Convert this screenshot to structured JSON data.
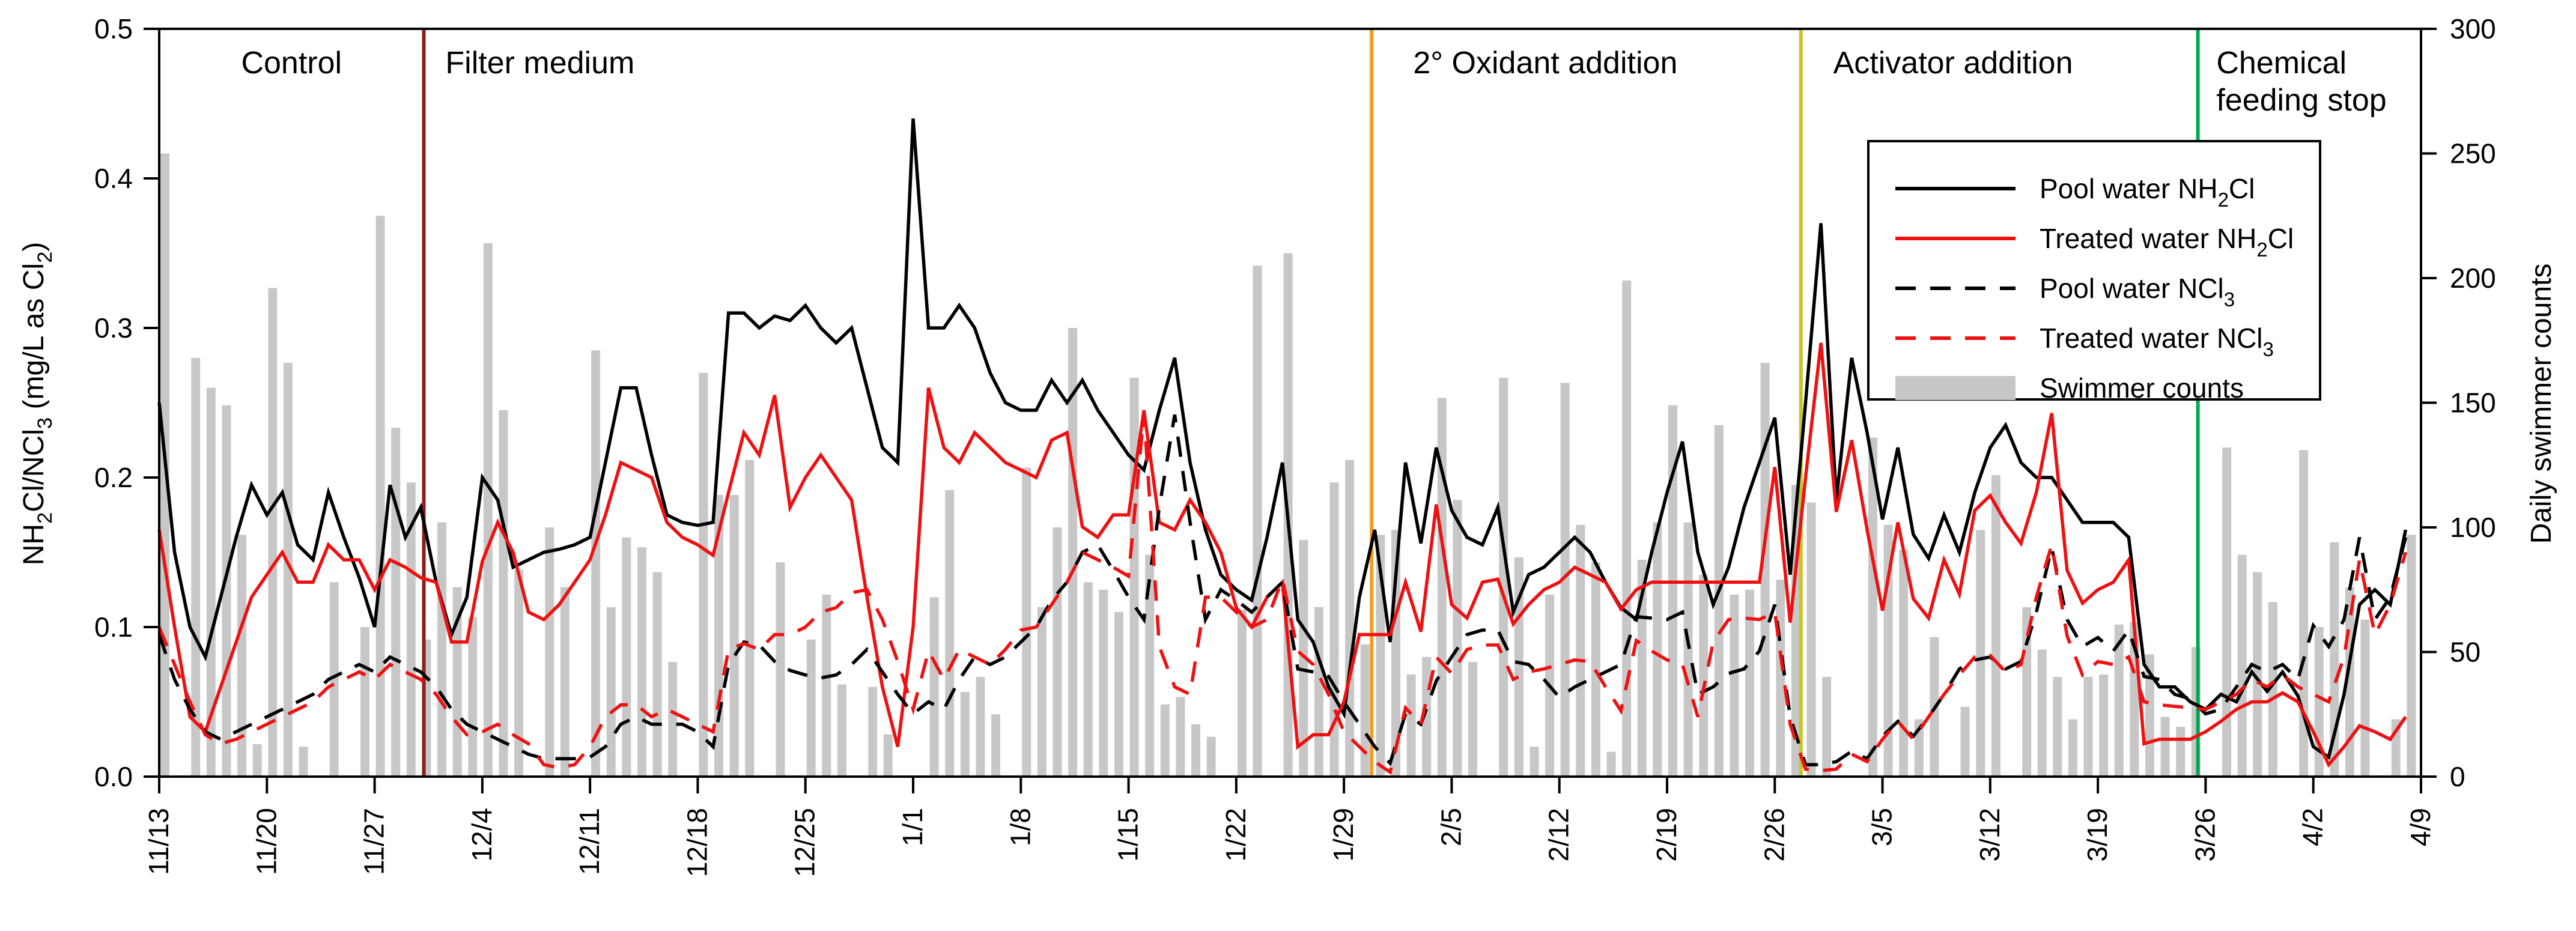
{
  "chart_data": {
    "type": "line+bar",
    "title": "",
    "x_axis": {
      "unit": "date",
      "start": "11/13",
      "end": "4/9",
      "total_days": 147,
      "tick_interval_days": 7,
      "tick_labels": [
        "11/13",
        "11/20",
        "11/27",
        "12/4",
        "12/11",
        "12/18",
        "12/25",
        "1/1",
        "1/8",
        "1/15",
        "1/22",
        "1/29",
        "2/5",
        "2/12",
        "2/19",
        "2/26",
        "3/5",
        "3/12",
        "3/19",
        "3/26",
        "4/2",
        "4/9"
      ]
    },
    "y_left": {
      "title": "NH{2}Cl/NCl{3} (mg/L as Cl{2})",
      "range": [
        0,
        0.5
      ],
      "tick_labels": [
        "0.0",
        "0.1",
        "0.2",
        "0.3",
        "0.4",
        "0.5"
      ]
    },
    "y_right": {
      "title": "Daily swimmer counts",
      "range": [
        0,
        300
      ],
      "tick_labels": [
        "0",
        "50",
        "100",
        "150",
        "200",
        "250",
        "300"
      ]
    },
    "grid": "off",
    "legend_position": "upper-right-inside",
    "days": [
      "11/13",
      "11/14",
      "11/15",
      "11/16",
      "11/17",
      "11/18",
      "11/19",
      "11/20",
      "11/21",
      "11/22",
      "11/23",
      "11/24",
      "11/25",
      "11/26",
      "11/27",
      "11/28",
      "11/29",
      "11/30",
      "12/1",
      "12/2",
      "12/3",
      "12/4",
      "12/5",
      "12/6",
      "12/7",
      "12/8",
      "12/9",
      "12/10",
      "12/11",
      "12/12",
      "12/13",
      "12/14",
      "12/15",
      "12/16",
      "12/17",
      "12/18",
      "12/19",
      "12/20",
      "12/21",
      "12/22",
      "12/23",
      "12/24",
      "12/25",
      "12/26",
      "12/27",
      "12/28",
      "12/29",
      "12/30",
      "12/31",
      "1/1",
      "1/2",
      "1/3",
      "1/4",
      "1/5",
      "1/6",
      "1/7",
      "1/8",
      "1/9",
      "1/10",
      "1/11",
      "1/12",
      "1/13",
      "1/14",
      "1/15",
      "1/16",
      "1/17",
      "1/18",
      "1/19",
      "1/20",
      "1/21",
      "1/22",
      "1/23",
      "1/24",
      "1/25",
      "1/26",
      "1/27",
      "1/28",
      "1/29",
      "1/30",
      "1/31",
      "2/1",
      "2/2",
      "2/3",
      "2/4",
      "2/5",
      "2/6",
      "2/7",
      "2/8",
      "2/9",
      "2/10",
      "2/11",
      "2/12",
      "2/13",
      "2/14",
      "2/15",
      "2/16",
      "2/17",
      "2/18",
      "2/19",
      "2/20",
      "2/21",
      "2/22",
      "2/23",
      "2/24",
      "2/25",
      "2/26",
      "2/27",
      "2/28",
      "3/1",
      "3/2",
      "3/3",
      "3/4",
      "3/5",
      "3/6",
      "3/7",
      "3/8",
      "3/9",
      "3/10",
      "3/11",
      "3/12",
      "3/13",
      "3/14",
      "3/15",
      "3/16",
      "3/17",
      "3/18",
      "3/19",
      "3/20",
      "3/21",
      "3/22",
      "3/23",
      "3/24",
      "3/25",
      "3/26",
      "3/27",
      "3/28",
      "3/29",
      "3/30",
      "3/31",
      "4/1",
      "4/2",
      "4/3",
      "4/4",
      "4/5",
      "4/6",
      "4/7",
      "4/8"
    ],
    "series": [
      {
        "name": "Pool water NH{2}Cl",
        "render": "line",
        "style": "solid",
        "color": "#000000",
        "axis": "left",
        "values": [
          0.25,
          0.15,
          0.1,
          0.08,
          0.12,
          0.16,
          0.195,
          0.175,
          0.19,
          0.155,
          0.145,
          0.19,
          0.16,
          0.133,
          0.1,
          0.195,
          0.16,
          0.18,
          0.13,
          0.095,
          0.12,
          0.2,
          0.185,
          0.14,
          0.145,
          0.15,
          0.152,
          0.155,
          0.16,
          0.21,
          0.26,
          0.26,
          0.215,
          0.175,
          0.17,
          0.168,
          0.17,
          0.31,
          0.31,
          0.3,
          0.308,
          0.305,
          0.315,
          0.3,
          0.29,
          0.3,
          0.26,
          0.22,
          0.21,
          0.44,
          0.3,
          0.3,
          0.315,
          0.3,
          0.27,
          0.25,
          0.245,
          0.245,
          0.265,
          0.25,
          0.265,
          0.245,
          0.23,
          0.215,
          0.205,
          0.245,
          0.28,
          0.21,
          0.165,
          0.135,
          0.125,
          0.118,
          0.16,
          0.21,
          0.105,
          0.09,
          0.06,
          0.042,
          0.12,
          0.165,
          0.09,
          0.21,
          0.156,
          0.22,
          0.178,
          0.16,
          0.155,
          0.18,
          0.11,
          0.135,
          0.14,
          0.15,
          0.16,
          0.15,
          0.13,
          0.113,
          0.105,
          0.15,
          0.19,
          0.224,
          0.15,
          0.115,
          0.14,
          0.18,
          0.21,
          0.24,
          0.135,
          0.25,
          0.37,
          0.185,
          0.28,
          0.23,
          0.172,
          0.22,
          0.162,
          0.146,
          0.175,
          0.15,
          0.19,
          0.22,
          0.235,
          0.21,
          0.2,
          0.2,
          0.185,
          0.17,
          0.17,
          0.17,
          0.16,
          0.075,
          0.06,
          0.06,
          0.05,
          0.045,
          0.055,
          0.05,
          0.07,
          0.057,
          0.07,
          0.054,
          0.02,
          0.013,
          0.055,
          0.115,
          0.125,
          0.115,
          0.165
        ]
      },
      {
        "name": "Treated water NH{2}Cl",
        "render": "line",
        "style": "solid",
        "color": "#ee1111",
        "axis": "left",
        "values": [
          0.165,
          0.1,
          0.04,
          0.03,
          0.06,
          0.09,
          0.12,
          0.135,
          0.15,
          0.13,
          0.13,
          0.155,
          0.145,
          0.145,
          0.125,
          0.145,
          0.14,
          0.133,
          0.13,
          0.09,
          0.09,
          0.144,
          0.17,
          0.15,
          0.11,
          0.105,
          0.115,
          0.13,
          0.145,
          0.175,
          0.21,
          0.205,
          0.2,
          0.17,
          0.16,
          0.155,
          0.148,
          0.19,
          0.23,
          0.215,
          0.255,
          0.18,
          0.2,
          0.215,
          0.2,
          0.185,
          0.12,
          0.06,
          0.02,
          0.1,
          0.26,
          0.22,
          0.21,
          0.23,
          0.22,
          0.21,
          0.205,
          0.2,
          0.225,
          0.23,
          0.167,
          0.16,
          0.175,
          0.175,
          0.245,
          0.17,
          0.165,
          0.185,
          0.17,
          0.15,
          0.113,
          0.1,
          0.12,
          0.13,
          0.02,
          0.028,
          0.028,
          0.05,
          0.095,
          0.095,
          0.095,
          0.13,
          0.097,
          0.182,
          0.115,
          0.106,
          0.13,
          0.132,
          0.102,
          0.115,
          0.125,
          0.13,
          0.14,
          0.135,
          0.13,
          0.112,
          0.125,
          0.13,
          0.13,
          0.13,
          0.13,
          0.13,
          0.13,
          0.13,
          0.13,
          0.207,
          0.103,
          0.2,
          0.29,
          0.177,
          0.225,
          0.165,
          0.111,
          0.17,
          0.119,
          0.106,
          0.145,
          0.122,
          0.178,
          0.188,
          0.17,
          0.156,
          0.19,
          0.243,
          0.138,
          0.116,
          0.125,
          0.13,
          0.145,
          0.022,
          0.025,
          0.025,
          0.025,
          0.03,
          0.037,
          0.045,
          0.05,
          0.05,
          0.056,
          0.05,
          0.03,
          0.008,
          0.02,
          0.034,
          0.03,
          0.025,
          0.04
        ]
      },
      {
        "name": "Pool water NCl{3}",
        "render": "line",
        "style": "dashed",
        "color": "#000000",
        "axis": "left",
        "values": [
          0.095,
          0.065,
          0.045,
          0.03,
          0.025,
          0.03,
          0.035,
          0.04,
          0.045,
          0.05,
          0.055,
          0.065,
          0.07,
          0.075,
          0.07,
          0.08,
          0.075,
          0.07,
          0.06,
          0.045,
          0.035,
          0.03,
          0.025,
          0.02,
          0.015,
          0.012,
          0.012,
          0.012,
          0.013,
          0.02,
          0.035,
          0.04,
          0.035,
          0.035,
          0.035,
          0.03,
          0.02,
          0.075,
          0.09,
          0.088,
          0.077,
          0.071,
          0.068,
          0.066,
          0.068,
          0.075,
          0.085,
          0.07,
          0.055,
          0.042,
          0.05,
          0.045,
          0.065,
          0.08,
          0.075,
          0.08,
          0.09,
          0.1,
          0.118,
          0.13,
          0.15,
          0.155,
          0.138,
          0.12,
          0.105,
          0.18,
          0.242,
          0.17,
          0.105,
          0.125,
          0.118,
          0.11,
          0.12,
          0.13,
          0.072,
          0.07,
          0.067,
          0.05,
          0.035,
          0.02,
          0.009,
          0.042,
          0.035,
          0.064,
          0.08,
          0.095,
          0.098,
          0.098,
          0.077,
          0.075,
          0.065,
          0.053,
          0.06,
          0.065,
          0.07,
          0.075,
          0.107,
          0.106,
          0.105,
          0.11,
          0.055,
          0.06,
          0.069,
          0.072,
          0.084,
          0.115,
          0.04,
          0.008,
          0.008,
          0.01,
          0.017,
          0.012,
          0.027,
          0.037,
          0.027,
          0.04,
          0.055,
          0.072,
          0.078,
          0.08,
          0.072,
          0.077,
          0.11,
          0.153,
          0.105,
          0.087,
          0.093,
          0.084,
          0.098,
          0.067,
          0.065,
          0.055,
          0.052,
          0.042,
          0.045,
          0.06,
          0.075,
          0.07,
          0.075,
          0.065,
          0.101,
          0.087,
          0.105,
          0.16,
          0.105,
          0.12,
          0.16
        ]
      },
      {
        "name": "Treated water NCl{3}",
        "render": "line",
        "style": "dashed",
        "color": "#ee1111",
        "axis": "left",
        "values": [
          0.1,
          0.075,
          0.05,
          0.028,
          0.022,
          0.025,
          0.03,
          0.035,
          0.04,
          0.045,
          0.05,
          0.06,
          0.065,
          0.07,
          0.065,
          0.075,
          0.07,
          0.065,
          0.055,
          0.04,
          0.028,
          0.03,
          0.035,
          0.028,
          0.022,
          0.008,
          0.006,
          0.008,
          0.02,
          0.04,
          0.048,
          0.048,
          0.04,
          0.045,
          0.04,
          0.035,
          0.03,
          0.085,
          0.089,
          0.085,
          0.095,
          0.095,
          0.1,
          0.11,
          0.113,
          0.123,
          0.125,
          0.105,
          0.077,
          0.045,
          0.084,
          0.065,
          0.085,
          0.08,
          0.075,
          0.085,
          0.098,
          0.1,
          0.115,
          0.13,
          0.15,
          0.145,
          0.14,
          0.134,
          0.243,
          0.087,
          0.06,
          0.055,
          0.12,
          0.12,
          0.11,
          0.1,
          0.105,
          0.132,
          0.084,
          0.075,
          0.055,
          0.03,
          0.02,
          0.01,
          0.003,
          0.046,
          0.035,
          0.08,
          0.069,
          0.085,
          0.088,
          0.088,
          0.065,
          0.07,
          0.072,
          0.075,
          0.078,
          0.077,
          0.06,
          0.044,
          0.091,
          0.084,
          0.078,
          0.075,
          0.04,
          0.09,
          0.105,
          0.106,
          0.105,
          0.11,
          0.035,
          0.005,
          0.004,
          0.005,
          0.015,
          0.01,
          0.025,
          0.037,
          0.025,
          0.04,
          0.055,
          0.068,
          0.08,
          0.081,
          0.07,
          0.075,
          0.12,
          0.155,
          0.094,
          0.068,
          0.077,
          0.075,
          0.08,
          0.05,
          0.048,
          0.047,
          0.046,
          0.045,
          0.05,
          0.055,
          0.065,
          0.06,
          0.068,
          0.06,
          0.055,
          0.05,
          0.08,
          0.145,
          0.095,
          0.115,
          0.15
        ]
      },
      {
        "name": "Swimmer counts",
        "render": "bar",
        "style": "bar",
        "color": "#c7c7c7",
        "axis": "right",
        "values": [
          250,
          0,
          168,
          156,
          149,
          97,
          13,
          196,
          166,
          12,
          0,
          78,
          0,
          60,
          225,
          140,
          118,
          55,
          102,
          76,
          64,
          214,
          147,
          83,
          0,
          100,
          76,
          0,
          171,
          68,
          96,
          92,
          82,
          46,
          0,
          162,
          113,
          113,
          127,
          0,
          86,
          0,
          55,
          73,
          37,
          0,
          36,
          17,
          0,
          0,
          72,
          115,
          34,
          40,
          25,
          0,
          124,
          68,
          100,
          180,
          78,
          75,
          66,
          160,
          89,
          29,
          32,
          21,
          16,
          0,
          67,
          205,
          0,
          210,
          95,
          68,
          118,
          127,
          53,
          97,
          99,
          41,
          48,
          152,
          111,
          46,
          0,
          160,
          88,
          12,
          73,
          158,
          101,
          86,
          10,
          199,
          87,
          102,
          149,
          102,
          81,
          141,
          73,
          75,
          166,
          79,
          117,
          110,
          40,
          0,
          0,
          136,
          101,
          91,
          23,
          56,
          0,
          28,
          99,
          121,
          0,
          68,
          51,
          40,
          23,
          40,
          41,
          61,
          62,
          49,
          24,
          20,
          52,
          0,
          132,
          89,
          82,
          70,
          0,
          131,
          60,
          94,
          76,
          63,
          0,
          23,
          97
        ]
      }
    ],
    "phase_lines": [
      {
        "day": 17.2,
        "color": "#8a1f1f"
      },
      {
        "day": 78.8,
        "color": "#f59b20"
      },
      {
        "day": 106.7,
        "color": "#c8c423"
      },
      {
        "day": 132.5,
        "color": "#00a84f"
      }
    ],
    "phase_labels": [
      {
        "lines": [
          "Control"
        ],
        "day": 8.6,
        "anchor": "middle"
      },
      {
        "lines": [
          "Filter medium"
        ],
        "day": 18.6,
        "anchor": "start"
      },
      {
        "lines": [
          "2° Oxidant addition"
        ],
        "day": 81.5,
        "anchor": "start"
      },
      {
        "lines": [
          "Activator addition"
        ],
        "day": 108.8,
        "anchor": "start"
      },
      {
        "lines": [
          "Chemical",
          "feeding stop"
        ],
        "day": 133.7,
        "anchor": "start"
      }
    ],
    "legend": {
      "entries": [
        {
          "label": "Pool water NH{2}Cl",
          "swatch": "line-solid",
          "color": "#000000"
        },
        {
          "label": "Treated water NH{2}Cl",
          "swatch": "line-solid",
          "color": "#ee1111"
        },
        {
          "label": "Pool water NCl{3}",
          "swatch": "line-dashed",
          "color": "#000000"
        },
        {
          "label": "Treated water NCl{3}",
          "swatch": "line-dashed",
          "color": "#ee1111"
        },
        {
          "label": "Swimmer counts",
          "swatch": "rect",
          "color": "#c7c7c7"
        }
      ]
    },
    "colors": {
      "pool_line": "#000000",
      "treated_line": "#ee1111",
      "bars": "#c7c7c7",
      "control_divider": "#8a1f1f",
      "oxidant_divider": "#f59b20",
      "activator_divider": "#c8c423",
      "feeding_stop_divider": "#00a84f",
      "axis": "#000000",
      "background": "#ffffff"
    }
  }
}
